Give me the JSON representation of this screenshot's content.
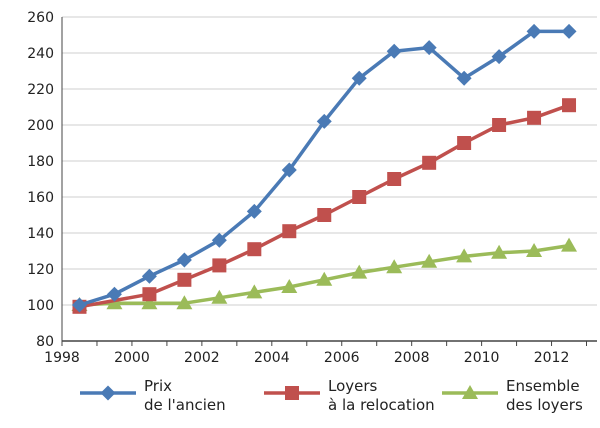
{
  "chart_data": {
    "type": "line",
    "title": "",
    "xlabel": "",
    "ylabel": "",
    "xlim": [
      1998,
      2013.3
    ],
    "ylim": [
      80,
      260
    ],
    "xticks": [
      1998,
      2000,
      2002,
      2004,
      2006,
      2008,
      2010,
      2012
    ],
    "yticks": [
      80,
      100,
      120,
      140,
      160,
      180,
      200,
      220,
      240,
      260
    ],
    "grid": "horizontal",
    "legend_position": "bottom",
    "series": [
      {
        "name_lines": [
          "Prix",
          "de l'ancien"
        ],
        "color": "#4a7ab5",
        "marker": "diamond",
        "x": [
          1998.5,
          1999.5,
          2000.5,
          2001.5,
          2002.5,
          2003.5,
          2004.5,
          2005.5,
          2006.5,
          2007.5,
          2008.5,
          2009.5,
          2010.5,
          2011.5,
          2012.5
        ],
        "y": [
          100,
          106,
          116,
          125,
          136,
          152,
          175,
          202,
          226,
          241,
          243,
          226,
          238,
          252,
          252
        ]
      },
      {
        "name_lines": [
          "Loyers",
          "à la relocation"
        ],
        "color": "#c0504d",
        "marker": "square",
        "x": [
          1998.5,
          2000.5,
          2001.5,
          2002.5,
          2003.5,
          2004.5,
          2005.5,
          2006.5,
          2007.5,
          2008.5,
          2009.5,
          2010.5,
          2011.5,
          2012.5
        ],
        "y": [
          99,
          106,
          114,
          122,
          131,
          141,
          150,
          160,
          170,
          179,
          190,
          200,
          204,
          211
        ]
      },
      {
        "name_lines": [
          "Ensemble",
          "des loyers"
        ],
        "color": "#9bbb59",
        "marker": "triangle",
        "x": [
          1998.5,
          1999.5,
          2000.5,
          2001.5,
          2002.5,
          2003.5,
          2004.5,
          2005.5,
          2006.5,
          2007.5,
          2008.5,
          2009.5,
          2010.5,
          2011.5,
          2012.5
        ],
        "y": [
          100,
          101,
          101,
          101,
          104,
          107,
          110,
          114,
          118,
          121,
          124,
          127,
          129,
          130,
          133
        ]
      }
    ]
  }
}
